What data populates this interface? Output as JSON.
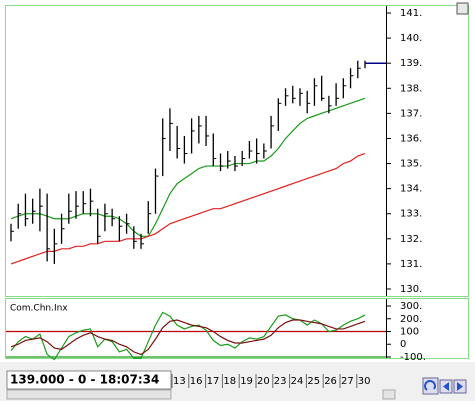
{
  "chart_data": [
    {
      "type": "ohlc",
      "low": [
        131.9,
        132.4,
        132.5,
        132.6,
        132.3,
        131.1,
        131.0,
        131.8,
        132.6,
        132.8,
        133.0,
        132.9,
        131.8,
        132.3,
        132.5,
        131.9,
        132.2,
        131.6,
        131.6,
        132.2,
        133.0,
        134.5,
        135.5,
        135.2,
        135.0,
        135.4,
        135.8,
        135.7,
        134.9,
        134.7,
        134.8,
        134.7,
        134.9,
        135.2,
        135.0,
        135.2,
        135.6,
        136.3,
        137.3,
        137.4,
        137.3,
        137.0,
        137.3,
        137.5,
        137.0,
        137.3,
        137.6,
        138.0,
        138.4,
        138.8
      ],
      "high": [
        132.6,
        133.4,
        133.8,
        133.6,
        134.0,
        133.8,
        132.4,
        133.0,
        133.8,
        133.9,
        133.9,
        134.0,
        133.2,
        133.4,
        133.2,
        132.9,
        133.0,
        132.5,
        132.2,
        133.5,
        134.8,
        136.8,
        137.2,
        136.5,
        136.1,
        136.8,
        136.9,
        136.9,
        136.2,
        135.4,
        135.5,
        135.3,
        135.5,
        135.9,
        136.0,
        135.8,
        136.9,
        137.6,
        138.0,
        138.1,
        138.0,
        137.9,
        138.4,
        138.5,
        137.7,
        138.2,
        138.4,
        138.8,
        139.1,
        139.1
      ],
      "close": [
        132.3,
        133.0,
        132.8,
        133.1,
        133.3,
        131.6,
        131.8,
        132.4,
        133.1,
        133.3,
        133.4,
        133.5,
        132.1,
        133.0,
        132.8,
        132.5,
        132.6,
        131.9,
        131.8,
        133.0,
        134.5,
        136.0,
        136.6,
        135.6,
        135.4,
        136.3,
        136.5,
        136.1,
        135.2,
        134.9,
        135.1,
        134.9,
        135.2,
        135.5,
        135.4,
        135.5,
        136.5,
        137.4,
        137.7,
        137.6,
        137.8,
        137.4,
        138.1,
        137.6,
        137.3,
        137.6,
        138.1,
        138.5,
        138.8,
        139.0
      ],
      "bar_color": "#000000",
      "last_color": "#000080",
      "overlays": [
        {
          "color": "#1a9a1a",
          "values": [
            132.8,
            132.9,
            133.0,
            133.0,
            133.0,
            132.9,
            132.8,
            132.8,
            132.8,
            132.9,
            133.0,
            133.0,
            133.0,
            132.9,
            132.9,
            132.8,
            132.6,
            132.3,
            132.1,
            132.1,
            132.6,
            133.2,
            133.8,
            134.2,
            134.4,
            134.6,
            134.8,
            134.9,
            134.9,
            134.9,
            134.9,
            135.0,
            135.0,
            135.0,
            135.1,
            135.1,
            135.3,
            135.6,
            136.0,
            136.3,
            136.6,
            136.8,
            136.9,
            137.0,
            137.1,
            137.2,
            137.3,
            137.4,
            137.5,
            137.6
          ]
        },
        {
          "color": "#e02020",
          "values": [
            131.0,
            131.1,
            131.2,
            131.3,
            131.4,
            131.5,
            131.5,
            131.6,
            131.6,
            131.7,
            131.7,
            131.8,
            131.8,
            131.9,
            131.9,
            131.9,
            132.0,
            132.0,
            132.0,
            132.1,
            132.2,
            132.4,
            132.6,
            132.7,
            132.8,
            132.9,
            133.0,
            133.1,
            133.2,
            133.2,
            133.3,
            133.4,
            133.5,
            133.6,
            133.7,
            133.8,
            133.9,
            134.0,
            134.1,
            134.2,
            134.3,
            134.4,
            134.5,
            134.6,
            134.7,
            134.8,
            135.0,
            135.1,
            135.3,
            135.4
          ]
        }
      ],
      "ylim": [
        129.72,
        141.28
      ],
      "yticks": [
        {
          "value": 141,
          "label": "141."
        },
        {
          "value": 140,
          "label": "140."
        },
        {
          "value": 139,
          "label": "139."
        },
        {
          "value": 138,
          "label": "138."
        },
        {
          "value": 137,
          "label": "137."
        },
        {
          "value": 136,
          "label": "136."
        },
        {
          "value": 135,
          "label": "135."
        },
        {
          "value": 134,
          "label": "134."
        },
        {
          "value": 133,
          "label": "133."
        },
        {
          "value": 132,
          "label": "132."
        },
        {
          "value": 131,
          "label": "131."
        },
        {
          "value": 130,
          "label": "130."
        }
      ]
    },
    {
      "type": "line",
      "title": "Com.Chn.Inx",
      "series": [
        {
          "color": "#1a9a1a",
          "values": [
            -50,
            20,
            60,
            40,
            80,
            -80,
            -120,
            -30,
            60,
            90,
            110,
            120,
            -20,
            40,
            20,
            -60,
            -40,
            -110,
            -110,
            20,
            150,
            250,
            220,
            150,
            120,
            140,
            150,
            110,
            30,
            -10,
            0,
            -30,
            20,
            50,
            40,
            60,
            140,
            220,
            230,
            200,
            190,
            150,
            190,
            160,
            100,
            110,
            150,
            180,
            200,
            230
          ]
        },
        {
          "color": "#7a1010",
          "values": [
            -20,
            0,
            30,
            40,
            50,
            20,
            -30,
            -40,
            0,
            40,
            70,
            90,
            60,
            40,
            30,
            0,
            -20,
            -60,
            -80,
            -40,
            40,
            130,
            180,
            190,
            170,
            150,
            140,
            130,
            100,
            60,
            30,
            10,
            10,
            20,
            30,
            40,
            70,
            130,
            170,
            190,
            190,
            180,
            170,
            160,
            140,
            120,
            120,
            140,
            160,
            180
          ]
        }
      ],
      "reference_lines": [
        {
          "value": 100,
          "color": "#c00000"
        },
        {
          "value": -100,
          "color": "#1a9a1a"
        }
      ],
      "ylim": [
        -108,
        355
      ],
      "yticks": [
        {
          "value": 300,
          "label": "300."
        },
        {
          "value": 200,
          "label": "200."
        },
        100,
        0,
        {
          "value": -100,
          "label": "-100."
        }
      ]
    }
  ],
  "footer": {
    "status": "139.000 - 0 - 18:07:34",
    "dates": [
      "13",
      "16",
      "17",
      "18",
      "19",
      "20",
      "23",
      "24",
      "25",
      "26",
      "27",
      "30"
    ]
  }
}
